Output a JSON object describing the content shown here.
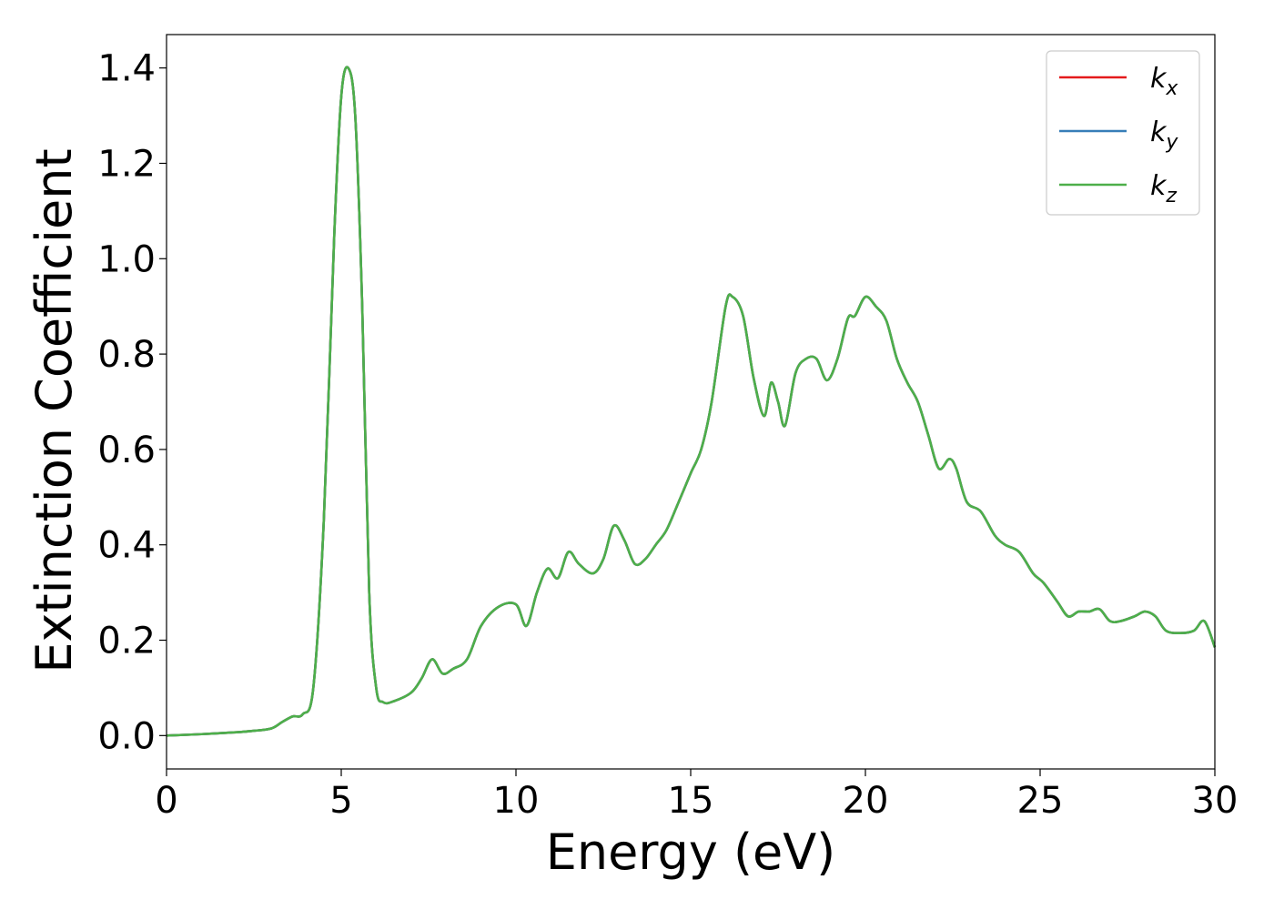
{
  "chart_data": {
    "type": "line",
    "xlabel": "Energy (eV)",
    "ylabel": "Extinction Coefficient",
    "xlim": [
      0,
      30
    ],
    "ylim": [
      -0.07,
      1.47
    ],
    "xticks": [
      0,
      5,
      10,
      15,
      20,
      25,
      30
    ],
    "xtick_labels": [
      "0",
      "5",
      "10",
      "15",
      "20",
      "25",
      "30"
    ],
    "yticks": [
      0.0,
      0.2,
      0.4,
      0.6,
      0.8,
      1.0,
      1.2,
      1.4
    ],
    "ytick_labels": [
      "0.0",
      "0.2",
      "0.4",
      "0.6",
      "0.8",
      "1.0",
      "1.2",
      "1.4"
    ],
    "grid": false,
    "legend_position": "top-right",
    "series": [
      {
        "name": "k_x",
        "legend_main": "k",
        "legend_sub": "x",
        "color": "#e41a1c",
        "x": [
          0,
          1,
          2,
          2.5,
          3,
          3.3,
          3.6,
          3.9,
          4.2,
          4.5,
          4.8,
          5.0,
          5.2,
          5.4,
          5.6,
          5.8,
          6.0,
          6.2,
          6.5,
          7.0,
          7.3,
          7.6,
          7.9,
          8.2,
          8.6,
          9.0,
          9.5,
          10.0,
          10.3,
          10.6,
          10.9,
          11.2,
          11.5,
          11.8,
          12.2,
          12.5,
          12.8,
          13.1,
          13.4,
          13.7,
          14.0,
          14.3,
          14.6,
          15.0,
          15.3,
          15.6,
          16.0,
          16.2,
          16.5,
          16.8,
          17.1,
          17.3,
          17.5,
          17.7,
          18.0,
          18.3,
          18.6,
          18.9,
          19.2,
          19.5,
          19.7,
          20.0,
          20.3,
          20.6,
          20.9,
          21.2,
          21.5,
          21.8,
          22.1,
          22.4,
          22.6,
          22.9,
          23.3,
          23.7,
          24.0,
          24.4,
          24.8,
          25.1,
          25.5,
          25.8,
          26.1,
          26.4,
          26.7,
          27.0,
          27.3,
          27.7,
          28.0,
          28.3,
          28.6,
          29.0,
          29.4,
          29.7,
          30.0
        ],
        "y": [
          0.0,
          0.003,
          0.007,
          0.01,
          0.015,
          0.028,
          0.04,
          0.045,
          0.1,
          0.45,
          1.05,
          1.34,
          1.4,
          1.3,
          0.9,
          0.3,
          0.1,
          0.07,
          0.072,
          0.09,
          0.12,
          0.16,
          0.13,
          0.14,
          0.16,
          0.23,
          0.27,
          0.275,
          0.23,
          0.3,
          0.35,
          0.33,
          0.385,
          0.36,
          0.34,
          0.37,
          0.44,
          0.41,
          0.36,
          0.37,
          0.4,
          0.43,
          0.48,
          0.55,
          0.6,
          0.7,
          0.9,
          0.92,
          0.88,
          0.75,
          0.67,
          0.74,
          0.7,
          0.65,
          0.76,
          0.79,
          0.79,
          0.745,
          0.79,
          0.875,
          0.88,
          0.92,
          0.9,
          0.87,
          0.79,
          0.74,
          0.7,
          0.63,
          0.56,
          0.58,
          0.56,
          0.49,
          0.47,
          0.42,
          0.4,
          0.385,
          0.34,
          0.32,
          0.28,
          0.25,
          0.26,
          0.26,
          0.265,
          0.24,
          0.24,
          0.25,
          0.26,
          0.25,
          0.22,
          0.215,
          0.22,
          0.24,
          0.185
        ]
      },
      {
        "name": "k_y",
        "legend_main": "k",
        "legend_sub": "y",
        "color": "#377eb8",
        "x": [
          0,
          1,
          2,
          2.5,
          3,
          3.3,
          3.6,
          3.9,
          4.2,
          4.5,
          4.8,
          5.0,
          5.2,
          5.4,
          5.6,
          5.8,
          6.0,
          6.2,
          6.5,
          7.0,
          7.3,
          7.6,
          7.9,
          8.2,
          8.6,
          9.0,
          9.5,
          10.0,
          10.3,
          10.6,
          10.9,
          11.2,
          11.5,
          11.8,
          12.2,
          12.5,
          12.8,
          13.1,
          13.4,
          13.7,
          14.0,
          14.3,
          14.6,
          15.0,
          15.3,
          15.6,
          16.0,
          16.2,
          16.5,
          16.8,
          17.1,
          17.3,
          17.5,
          17.7,
          18.0,
          18.3,
          18.6,
          18.9,
          19.2,
          19.5,
          19.7,
          20.0,
          20.3,
          20.6,
          20.9,
          21.2,
          21.5,
          21.8,
          22.1,
          22.4,
          22.6,
          22.9,
          23.3,
          23.7,
          24.0,
          24.4,
          24.8,
          25.1,
          25.5,
          25.8,
          26.1,
          26.4,
          26.7,
          27.0,
          27.3,
          27.7,
          28.0,
          28.3,
          28.6,
          29.0,
          29.4,
          29.7,
          30.0
        ],
        "y": [
          0.0,
          0.003,
          0.007,
          0.01,
          0.015,
          0.028,
          0.04,
          0.045,
          0.1,
          0.45,
          1.05,
          1.34,
          1.4,
          1.3,
          0.9,
          0.3,
          0.1,
          0.07,
          0.072,
          0.09,
          0.12,
          0.16,
          0.13,
          0.14,
          0.16,
          0.23,
          0.27,
          0.275,
          0.23,
          0.3,
          0.35,
          0.33,
          0.385,
          0.36,
          0.34,
          0.37,
          0.44,
          0.41,
          0.36,
          0.37,
          0.4,
          0.43,
          0.48,
          0.55,
          0.6,
          0.7,
          0.9,
          0.92,
          0.88,
          0.75,
          0.67,
          0.74,
          0.7,
          0.65,
          0.76,
          0.79,
          0.79,
          0.745,
          0.79,
          0.875,
          0.88,
          0.92,
          0.9,
          0.87,
          0.79,
          0.74,
          0.7,
          0.63,
          0.56,
          0.58,
          0.56,
          0.49,
          0.47,
          0.42,
          0.4,
          0.385,
          0.34,
          0.32,
          0.28,
          0.25,
          0.26,
          0.26,
          0.265,
          0.24,
          0.24,
          0.25,
          0.26,
          0.25,
          0.22,
          0.215,
          0.22,
          0.24,
          0.185
        ]
      },
      {
        "name": "k_z",
        "legend_main": "k",
        "legend_sub": "z",
        "color": "#4daf4a",
        "x": [
          0,
          1,
          2,
          2.5,
          3,
          3.3,
          3.6,
          3.9,
          4.2,
          4.5,
          4.8,
          5.0,
          5.2,
          5.4,
          5.6,
          5.8,
          6.0,
          6.2,
          6.5,
          7.0,
          7.3,
          7.6,
          7.9,
          8.2,
          8.6,
          9.0,
          9.5,
          10.0,
          10.3,
          10.6,
          10.9,
          11.2,
          11.5,
          11.8,
          12.2,
          12.5,
          12.8,
          13.1,
          13.4,
          13.7,
          14.0,
          14.3,
          14.6,
          15.0,
          15.3,
          15.6,
          16.0,
          16.2,
          16.5,
          16.8,
          17.1,
          17.3,
          17.5,
          17.7,
          18.0,
          18.3,
          18.6,
          18.9,
          19.2,
          19.5,
          19.7,
          20.0,
          20.3,
          20.6,
          20.9,
          21.2,
          21.5,
          21.8,
          22.1,
          22.4,
          22.6,
          22.9,
          23.3,
          23.7,
          24.0,
          24.4,
          24.8,
          25.1,
          25.5,
          25.8,
          26.1,
          26.4,
          26.7,
          27.0,
          27.3,
          27.7,
          28.0,
          28.3,
          28.6,
          29.0,
          29.4,
          29.7,
          30.0
        ],
        "y": [
          0.0,
          0.003,
          0.007,
          0.01,
          0.015,
          0.028,
          0.04,
          0.045,
          0.1,
          0.45,
          1.05,
          1.34,
          1.4,
          1.3,
          0.9,
          0.3,
          0.1,
          0.07,
          0.072,
          0.09,
          0.12,
          0.16,
          0.13,
          0.14,
          0.16,
          0.23,
          0.27,
          0.275,
          0.23,
          0.3,
          0.35,
          0.33,
          0.385,
          0.36,
          0.34,
          0.37,
          0.44,
          0.41,
          0.36,
          0.37,
          0.4,
          0.43,
          0.48,
          0.55,
          0.6,
          0.7,
          0.9,
          0.92,
          0.88,
          0.75,
          0.67,
          0.74,
          0.7,
          0.65,
          0.76,
          0.79,
          0.79,
          0.745,
          0.79,
          0.875,
          0.88,
          0.92,
          0.9,
          0.87,
          0.79,
          0.74,
          0.7,
          0.63,
          0.56,
          0.58,
          0.56,
          0.49,
          0.47,
          0.42,
          0.4,
          0.385,
          0.34,
          0.32,
          0.28,
          0.25,
          0.26,
          0.26,
          0.265,
          0.24,
          0.24,
          0.25,
          0.26,
          0.25,
          0.22,
          0.215,
          0.22,
          0.24,
          0.185
        ]
      }
    ]
  }
}
